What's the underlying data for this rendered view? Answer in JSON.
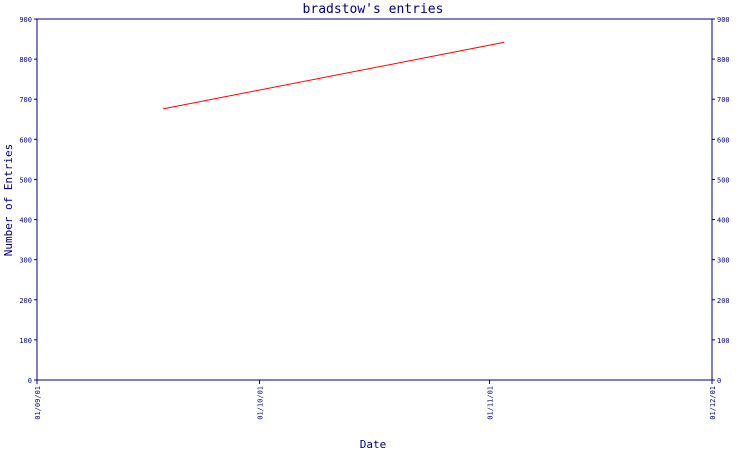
{
  "chart_data": {
    "type": "line",
    "title": "bradstow's entries",
    "xlabel": "Date",
    "ylabel": "Number of Entries",
    "ylim": [
      0,
      900
    ],
    "yticks": [
      "0",
      "100",
      "200",
      "300",
      "400",
      "500",
      "600",
      "700",
      "800",
      "900"
    ],
    "xticks": [
      "01/09/01",
      "01/10/01",
      "01/11/01",
      "01/12/01"
    ],
    "xlim": [
      "01/09/01",
      "01/12/01"
    ],
    "grid": false,
    "legend": "none",
    "series": [
      {
        "color": "#ff0000",
        "points": [
          {
            "x": "2001-09-18",
            "y": 676
          },
          {
            "x": "2001-11-03",
            "y": 842
          }
        ]
      }
    ]
  },
  "colors": {
    "axis": "#000080",
    "text": "#000080",
    "background": "#ffffff"
  }
}
